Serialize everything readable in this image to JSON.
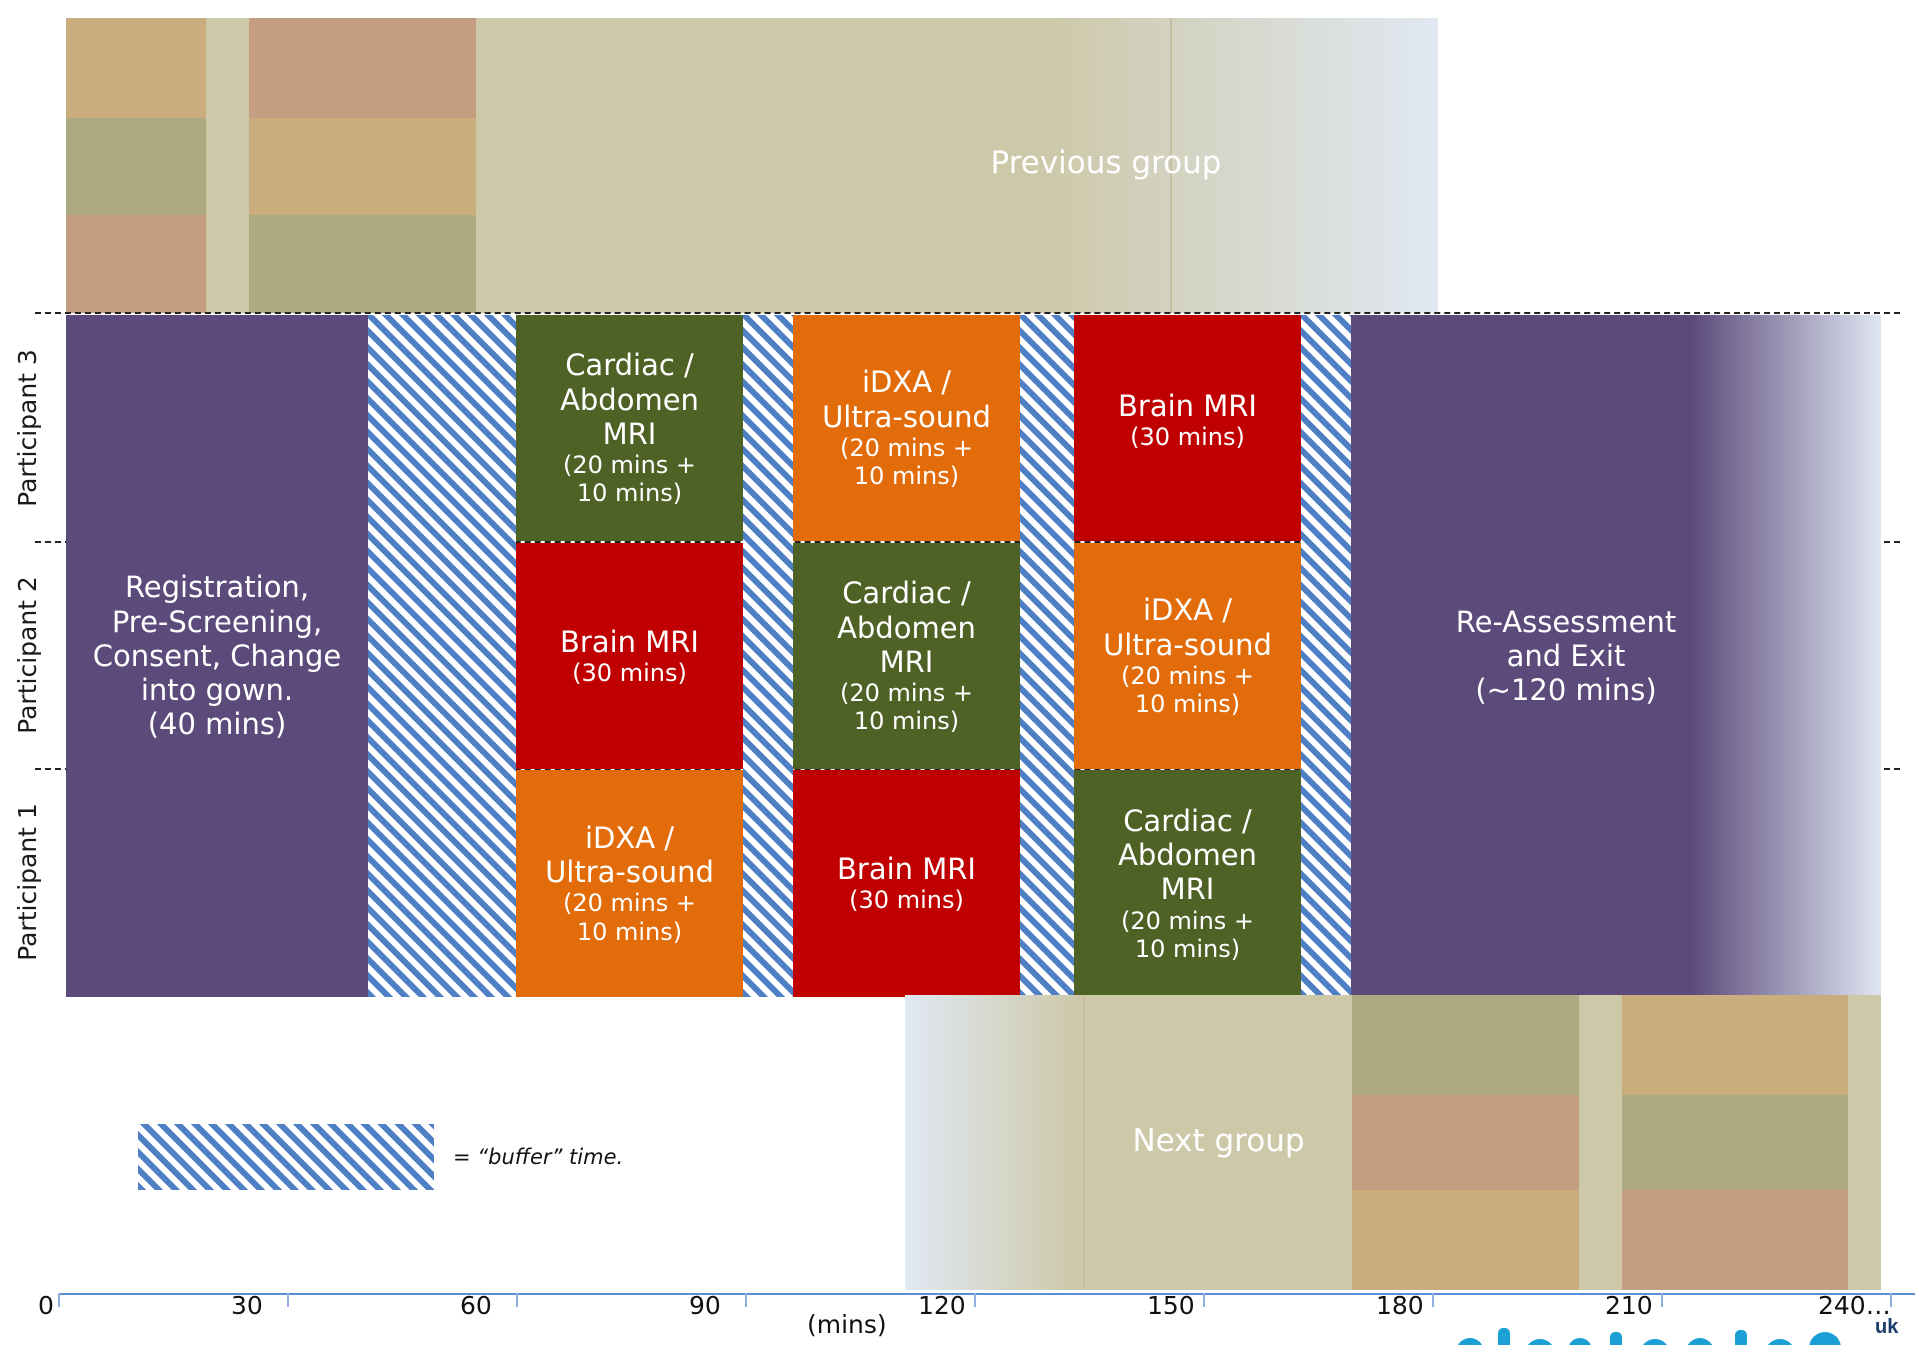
{
  "groups": {
    "previous": "Previous group",
    "next": "Next group"
  },
  "rows": {
    "participant_3": "Participant 3",
    "participant_2": "Participant 2",
    "participant_1": "Participant 1"
  },
  "registration": {
    "lines": [
      "Registration,",
      "Pre-Screening,",
      "Consent, Change",
      "into gown.",
      "(40 mins)"
    ]
  },
  "exit": {
    "lines": [
      "Re-Assessment",
      "and Exit",
      "(~120 mins)"
    ]
  },
  "p3": {
    "cardiac": {
      "l1": "Cardiac /",
      "l2": "Abdomen",
      "l3": "MRI",
      "d1": "(20 mins +",
      "d2": "10 mins)"
    },
    "idxa": {
      "l1": "iDXA /",
      "l2": "Ultra-sound",
      "d1": "(20 mins +",
      "d2": "10 mins)"
    },
    "brain": {
      "l1": "Brain MRI",
      "d1": "(30 mins)"
    }
  },
  "p2": {
    "brain": {
      "l1": "Brain MRI",
      "d1": "(30 mins)"
    },
    "cardiac": {
      "l1": "Cardiac /",
      "l2": "Abdomen",
      "l3": "MRI",
      "d1": "(20 mins +",
      "d2": "10 mins)"
    },
    "idxa": {
      "l1": "iDXA /",
      "l2": "Ultra-sound",
      "d1": "(20 mins +",
      "d2": "10 mins)"
    }
  },
  "p1": {
    "idxa": {
      "l1": "iDXA /",
      "l2": "Ultra-sound",
      "d1": "(20 mins +",
      "d2": "10 mins)"
    },
    "brain": {
      "l1": "Brain MRI",
      "d1": "(30 mins)"
    },
    "cardiac": {
      "l1": "Cardiac /",
      "l2": "Abdomen",
      "l3": "MRI",
      "d1": "(20 mins +",
      "d2": "10 mins)"
    }
  },
  "legend": {
    "text": "= “buffer” time."
  },
  "axis": {
    "ticks": [
      "0",
      "30",
      "60",
      "90",
      "120",
      "150",
      "180",
      "210",
      "240…"
    ],
    "unit": "(mins)"
  },
  "logo": {
    "suffix": "uk"
  },
  "colors": {
    "purple": "#5b4a7a",
    "green": "#4e6226",
    "orange": "#e36c0a",
    "red": "#c00000",
    "buffer_stripe": "#4f7fc4",
    "other_group": "#cdc8a8"
  }
}
